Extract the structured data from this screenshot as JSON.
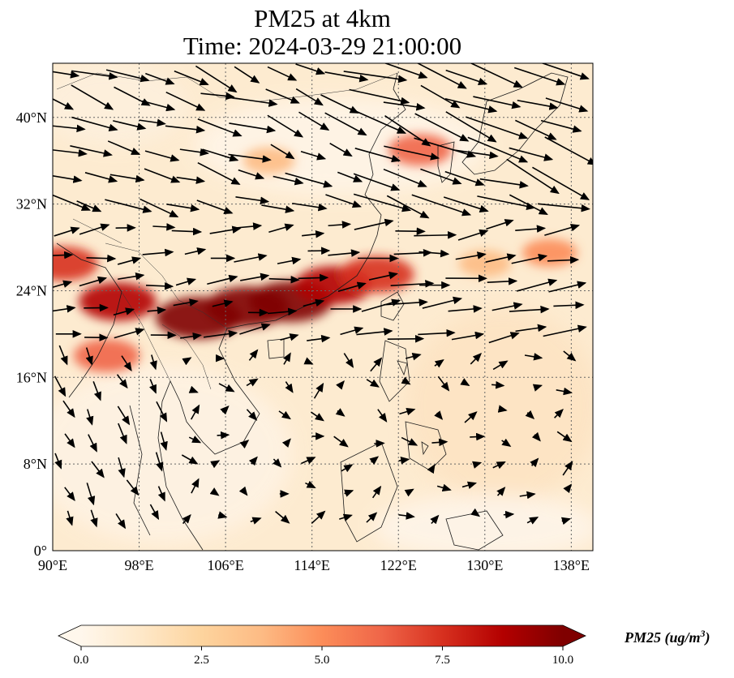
{
  "title": {
    "line1": "PM25 at 4km",
    "line2": "Time: 2024-03-29 21:00:00"
  },
  "map": {
    "lon_range": [
      90,
      140
    ],
    "lat_range": [
      0,
      45
    ],
    "lon_ticks": [
      {
        "value": 90,
        "label": "90°E"
      },
      {
        "value": 98,
        "label": "98°E"
      },
      {
        "value": 106,
        "label": "106°E"
      },
      {
        "value": 114,
        "label": "114°E"
      },
      {
        "value": 122,
        "label": "122°E"
      },
      {
        "value": 130,
        "label": "130°E"
      },
      {
        "value": 138,
        "label": "138°E"
      }
    ],
    "lat_ticks": [
      {
        "value": 0,
        "label": "0°"
      },
      {
        "value": 8,
        "label": "8°N"
      },
      {
        "value": 16,
        "label": "16°N"
      },
      {
        "value": 24,
        "label": "24°N"
      },
      {
        "value": 32,
        "label": "32°N"
      },
      {
        "value": 40,
        "label": "40°N"
      }
    ],
    "gridlines": true,
    "pollution_plumes": [
      {
        "lon": 103.5,
        "lat": 21.5,
        "level": 10.0
      },
      {
        "lon": 108,
        "lat": 22.5,
        "level": 9.5
      },
      {
        "lon": 112,
        "lat": 23,
        "level": 9.5
      },
      {
        "lon": 116,
        "lat": 24.5,
        "level": 8.5
      },
      {
        "lon": 120,
        "lat": 25.5,
        "level": 8.0
      },
      {
        "lon": 96,
        "lat": 23,
        "level": 8.5
      },
      {
        "lon": 91,
        "lat": 26.5,
        "level": 7.0
      },
      {
        "lon": 95,
        "lat": 18,
        "level": 6.5
      },
      {
        "lon": 124,
        "lat": 37,
        "level": 6.0
      },
      {
        "lon": 110,
        "lat": 36,
        "level": 4.0
      },
      {
        "lon": 130,
        "lat": 26.5,
        "level": 4.0
      },
      {
        "lon": 136,
        "lat": 27.5,
        "level": 4.5
      }
    ]
  },
  "colorbar": {
    "min": 0.0,
    "max": 10.0,
    "ticks": [
      "0.0",
      "2.5",
      "5.0",
      "7.5",
      "10.0"
    ],
    "label": "PM25 (ug/m",
    "label_sup": "3",
    "label_end": ")",
    "cmap": [
      "#fff7ec",
      "#fee8c8",
      "#fdd49e",
      "#fdbb84",
      "#fc8d59",
      "#ef6548",
      "#d7301f",
      "#b30000",
      "#7f0000"
    ]
  }
}
